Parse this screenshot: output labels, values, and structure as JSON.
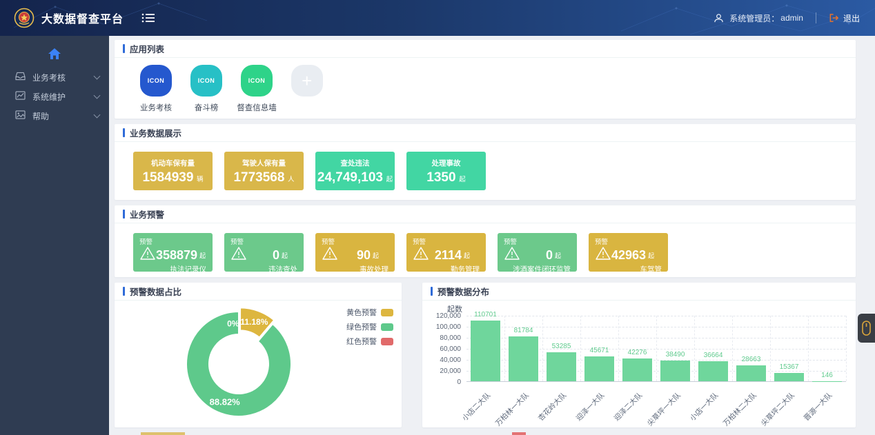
{
  "navbar": {
    "title": "大数据督查平台",
    "user_role_label": "系统管理员：",
    "username": "admin",
    "logout_label": "退出"
  },
  "sidebar": {
    "items": [
      {
        "label": "业务考核",
        "icon": "inbox-icon"
      },
      {
        "label": "系统维护",
        "icon": "chart-monitor-icon"
      },
      {
        "label": "帮助",
        "icon": "image-icon"
      }
    ]
  },
  "app_list": {
    "title": "应用列表",
    "apps": [
      {
        "label": "业务考核",
        "icon_text": "ICON",
        "color": "#2558ce"
      },
      {
        "label": "奋斗榜",
        "icon_text": "ICON",
        "color": "#27c0c6"
      },
      {
        "label": "督查信息墙",
        "icon_text": "ICON",
        "color": "#2ed389"
      }
    ],
    "add_label": "+"
  },
  "business_data": {
    "title": "业务数据展示",
    "cards": [
      {
        "label": "机动车保有量",
        "value": "1584939",
        "unit": "辆",
        "color": "#d9b74a"
      },
      {
        "label": "驾驶人保有量",
        "value": "1773568",
        "unit": "人",
        "color": "#d9b74a"
      },
      {
        "label": "查处违法",
        "value": "24,749,103",
        "unit": "起",
        "color": "#42d6a3"
      },
      {
        "label": "处理事故",
        "value": "1350",
        "unit": "起",
        "color": "#42d6a3"
      }
    ]
  },
  "business_warning": {
    "title": "业务预警",
    "tag": "预警",
    "unit": "起",
    "cards": [
      {
        "value": "358879",
        "category": "执法记录仪",
        "level": "green"
      },
      {
        "value": "0",
        "category": "违法查处",
        "level": "green"
      },
      {
        "value": "90",
        "category": "事故处理",
        "level": "yellow"
      },
      {
        "value": "2114",
        "category": "勤务管理",
        "level": "yellow"
      },
      {
        "value": "0",
        "category": "涉酒案件闭环监管",
        "level": "green"
      },
      {
        "value": "42963",
        "category": "车驾管",
        "level": "yellow"
      }
    ]
  },
  "chart_data": [
    {
      "type": "pie",
      "title": "预警数据占比",
      "donut": true,
      "legend_position": "top-right",
      "legend": [
        "黄色预警",
        "绿色预警",
        "红色预警"
      ],
      "slices": [
        {
          "name": "红色预警",
          "percent": 0,
          "label": "0%",
          "color": "#e16a6a",
          "label_angle_offset": -8
        },
        {
          "name": "黄色预警",
          "percent": 11.18,
          "label": "11.18%",
          "color": "#ddb63f",
          "exploded": true
        },
        {
          "name": "绿色预警",
          "percent": 88.82,
          "label": "88.82%",
          "color": "#5ec98b"
        }
      ]
    },
    {
      "type": "bar",
      "title": "预警数据分布",
      "ylabel": "起数",
      "categories": [
        "小店二大队",
        "万柏林一大队",
        "杏花岭大队",
        "迎泽一大队",
        "迎泽二大队",
        "尖草坪一大队",
        "小店一大队",
        "万柏林二大队",
        "尖草坪二大队",
        "晋源一大队"
      ],
      "values": [
        110701,
        81784,
        53285,
        45671,
        42276,
        38490,
        36664,
        28663,
        15367,
        146
      ],
      "ylim": [
        0,
        120000
      ],
      "yticks": [
        "120,000",
        "100,000",
        "80,000",
        "60,000",
        "40,000",
        "20,000",
        "0"
      ],
      "grid": "dashed",
      "bar_color": "#6fd69c",
      "value_label_color": "#5fca8d"
    }
  ],
  "colors": {
    "navbar_from": "#14244c",
    "navbar_to": "#2b5aa3",
    "sidebar_bg": "#2f3c52",
    "accent_blue": "#2f6bd8",
    "warn_green": "#6cc98b",
    "warn_yellow": "#d9b540",
    "logout_orange": "#e8732c",
    "gadget_gold": "#d9a43b"
  },
  "gadget": {
    "icon": "mouse-icon"
  }
}
